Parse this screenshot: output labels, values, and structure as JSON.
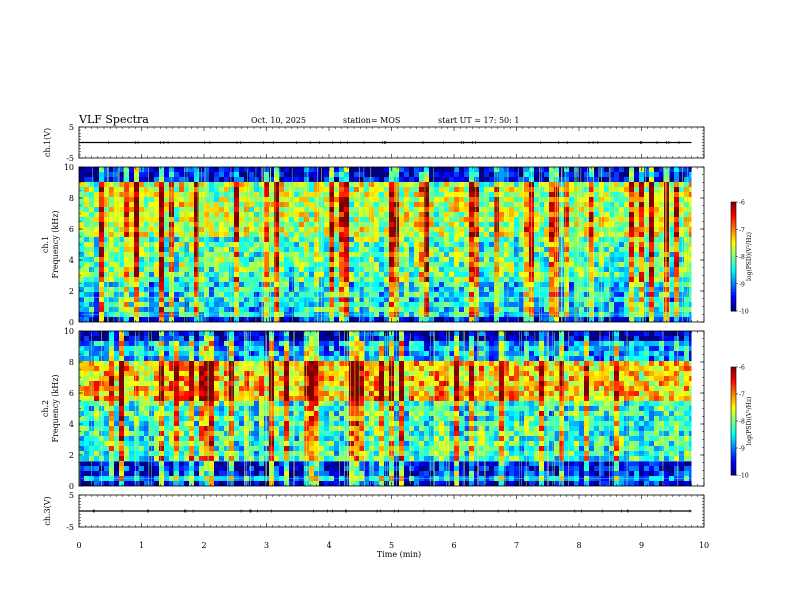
{
  "header": {
    "title": "VLF Spectra",
    "date": "Oct. 10, 2025",
    "station": "station= MOS",
    "start": "start  UT =   17: 50: 1"
  },
  "chart_data": [
    {
      "type": "line",
      "ylabel": "ch.1(V)",
      "ylim": [
        -5,
        5
      ],
      "yticks": [
        "5",
        "-5"
      ],
      "series": [
        {
          "x": [
            0,
            9.8
          ],
          "y": [
            0,
            0
          ]
        }
      ]
    },
    {
      "type": "heatmap",
      "ylabel": [
        "ch.1",
        "Frequency (kHz)"
      ],
      "ylim": [
        0,
        10
      ],
      "yticks": [
        "0",
        "2",
        "4",
        "6",
        "8",
        "10"
      ],
      "x_range": [
        0,
        9.8
      ],
      "colorbar": {
        "label": "log(PSD)(V²/Hz)",
        "ticks": [
          "-6",
          "-7",
          "-8",
          "-9",
          "-10"
        ],
        "range": [
          -10,
          -6
        ]
      }
    },
    {
      "type": "heatmap",
      "ylabel": [
        "ch.2",
        "Frequency (kHz)"
      ],
      "ylim": [
        0,
        10
      ],
      "yticks": [
        "0",
        "2",
        "4",
        "6",
        "8",
        "10"
      ],
      "x_range": [
        0,
        9.8
      ],
      "colorbar": {
        "label": "log(PSD)(V²/Hz)",
        "ticks": [
          "-6",
          "-7",
          "-8",
          "-9",
          "-10"
        ],
        "range": [
          -10,
          -6
        ]
      }
    },
    {
      "type": "line",
      "ylabel": "ch.3(V)",
      "ylim": [
        -5,
        5
      ],
      "yticks": [
        "5",
        "-5"
      ],
      "series": [
        {
          "x": [
            0,
            9.8
          ],
          "y": [
            0,
            0
          ]
        }
      ]
    }
  ],
  "x_axis": {
    "label": "Time (min)",
    "ticks": [
      "0",
      "1",
      "2",
      "3",
      "4",
      "5",
      "6",
      "7",
      "8",
      "9",
      "10"
    ]
  }
}
